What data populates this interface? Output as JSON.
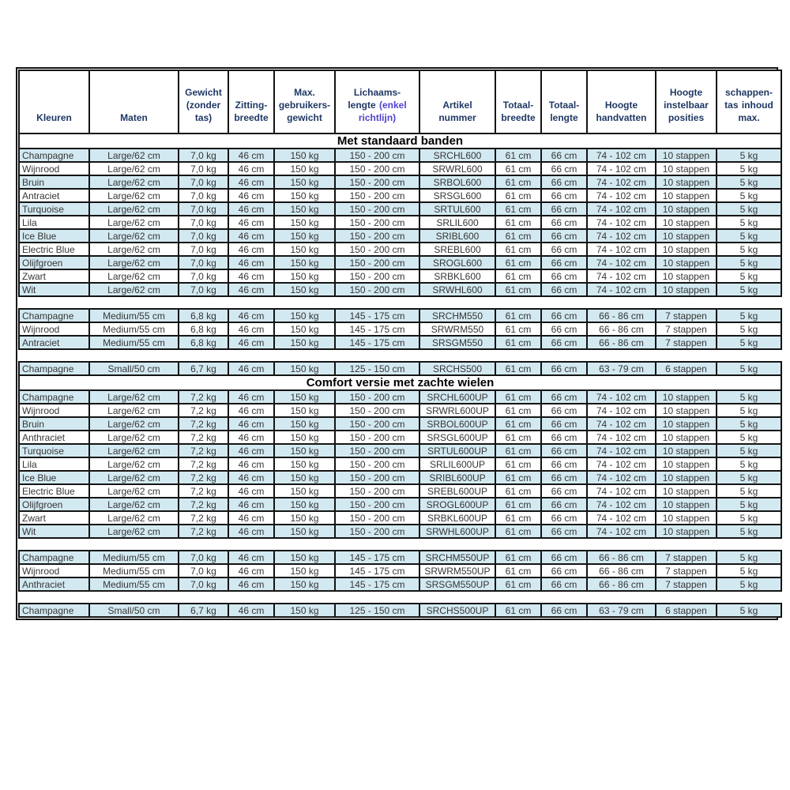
{
  "colors": {
    "stripe_blue": "#d3e9f1",
    "header_text": "#1f3864",
    "note_text": "#4f42cf",
    "body_text": "#363636",
    "grid": "#141414"
  },
  "header": {
    "cells": [
      {
        "lines": [
          "Kleuren"
        ]
      },
      {
        "lines": [
          "Maten"
        ]
      },
      {
        "lines": [
          "Gewicht",
          "(zonder",
          "tas)"
        ]
      },
      {
        "lines": [
          "Zitting-",
          "breedte"
        ]
      },
      {
        "lines": [
          "Max.",
          "gebruikers-",
          "gewicht"
        ]
      },
      {
        "lines": [
          "Lichaams-",
          "lengte"
        ],
        "note": "(enkel richtlijn)"
      },
      {
        "lines": [
          "Artikel",
          "nummer"
        ]
      },
      {
        "lines": [
          "Totaal-",
          "breedte"
        ]
      },
      {
        "lines": [
          "Totaal-",
          "lengte"
        ]
      },
      {
        "lines": [
          "Hoogte",
          "handvatten"
        ]
      },
      {
        "lines": [
          "Hoogte",
          "instelbaar",
          "posities"
        ]
      },
      {
        "lines": [
          "schappen-",
          "tas inhoud",
          "max."
        ]
      }
    ]
  },
  "sections": [
    {
      "title": "Met standaard banden",
      "groups": [
        {
          "rows": [
            [
              "Champagne",
              "Large/62 cm",
              "7,0 kg",
              "46 cm",
              "150 kg",
              "150 - 200 cm",
              "SRCHL600",
              "61 cm",
              "66 cm",
              "74 - 102 cm",
              "10 stappen",
              "5 kg"
            ],
            [
              "Wijnrood",
              "Large/62 cm",
              "7,0 kg",
              "46 cm",
              "150 kg",
              "150 - 200 cm",
              "SRWRL600",
              "61 cm",
              "66 cm",
              "74 - 102 cm",
              "10 stappen",
              "5 kg"
            ],
            [
              "Bruin",
              "Large/62 cm",
              "7,0 kg",
              "46 cm",
              "150 kg",
              "150 - 200 cm",
              "SRBOL600",
              "61 cm",
              "66 cm",
              "74 - 102 cm",
              "10 stappen",
              "5 kg"
            ],
            [
              "Antraciet",
              "Large/62 cm",
              "7,0 kg",
              "46 cm",
              "150 kg",
              "150 - 200 cm",
              "SRSGL600",
              "61 cm",
              "66 cm",
              "74 - 102 cm",
              "10 stappen",
              "5 kg"
            ],
            [
              "Turquoise",
              "Large/62 cm",
              "7,0 kg",
              "46 cm",
              "150 kg",
              "150 - 200 cm",
              "SRTUL600",
              "61 cm",
              "66 cm",
              "74 - 102 cm",
              "10 stappen",
              "5 kg"
            ],
            [
              "Lila",
              "Large/62 cm",
              "7,0 kg",
              "46 cm",
              "150 kg",
              "150 - 200 cm",
              "SRLIL600",
              "61 cm",
              "66 cm",
              "74 - 102 cm",
              "10 stappen",
              "5 kg"
            ],
            [
              "Ice Blue",
              "Large/62 cm",
              "7,0 kg",
              "46 cm",
              "150 kg",
              "150 - 200 cm",
              "SRIBL600",
              "61 cm",
              "66 cm",
              "74 - 102 cm",
              "10 stappen",
              "5 kg"
            ],
            [
              "Electric Blue",
              "Large/62 cm",
              "7,0 kg",
              "46 cm",
              "150 kg",
              "150 - 200 cm",
              "SREBL600",
              "61 cm",
              "66 cm",
              "74 - 102 cm",
              "10 stappen",
              "5 kg"
            ],
            [
              "Olijfgroen",
              "Large/62 cm",
              "7,0 kg",
              "46 cm",
              "150 kg",
              "150 - 200 cm",
              "SROGL600",
              "61 cm",
              "66 cm",
              "74 - 102 cm",
              "10 stappen",
              "5 kg"
            ],
            [
              "Zwart",
              "Large/62 cm",
              "7,0 kg",
              "46 cm",
              "150 kg",
              "150 - 200 cm",
              "SRBKL600",
              "61 cm",
              "66 cm",
              "74 - 102 cm",
              "10 stappen",
              "5 kg"
            ],
            [
              "Wit",
              "Large/62 cm",
              "7,0 kg",
              "46 cm",
              "150 kg",
              "150 - 200 cm",
              "SRWHL600",
              "61 cm",
              "66 cm",
              "74 - 102 cm",
              "10 stappen",
              "5 kg"
            ]
          ]
        },
        {
          "rows": [
            [
              "Champagne",
              "Medium/55 cm",
              "6,8 kg",
              "46 cm",
              "150 kg",
              "145 - 175 cm",
              "SRCHM550",
              "61 cm",
              "66 cm",
              "66 - 86 cm",
              "7 stappen",
              "5 kg"
            ],
            [
              "Wijnrood",
              "Medium/55 cm",
              "6,8 kg",
              "46 cm",
              "150 kg",
              "145 - 175 cm",
              "SRWRM550",
              "61 cm",
              "66 cm",
              "66 - 86 cm",
              "7 stappen",
              "5 kg"
            ],
            [
              "Antraciet",
              "Medium/55 cm",
              "6,8 kg",
              "46 cm",
              "150 kg",
              "145 - 175 cm",
              "SRSGM550",
              "61 cm",
              "66 cm",
              "66 - 86 cm",
              "7 stappen",
              "5 kg"
            ]
          ]
        },
        {
          "rows": [
            [
              "Champagne",
              "Small/50 cm",
              "6,7 kg",
              "46 cm",
              "150 kg",
              "125 - 150 cm",
              "SRCHS500",
              "61 cm",
              "66 cm",
              "63 - 79 cm",
              "6 stappen",
              "5 kg"
            ]
          ]
        }
      ]
    },
    {
      "title": "Comfort versie met zachte wielen",
      "groups": [
        {
          "rows": [
            [
              "Champagne",
              "Large/62 cm",
              "7,2 kg",
              "46 cm",
              "150 kg",
              "150 - 200 cm",
              "SRCHL600UP",
              "61 cm",
              "66 cm",
              "74 - 102 cm",
              "10 stappen",
              "5 kg"
            ],
            [
              "Wijnrood",
              "Large/62 cm",
              "7,2 kg",
              "46 cm",
              "150 kg",
              "150 - 200 cm",
              "SRWRL600UP",
              "61 cm",
              "66 cm",
              "74 - 102 cm",
              "10 stappen",
              "5 kg"
            ],
            [
              "Bruin",
              "Large/62 cm",
              "7,2 kg",
              "46 cm",
              "150 kg",
              "150 - 200 cm",
              "SRBOL600UP",
              "61 cm",
              "66 cm",
              "74 - 102 cm",
              "10 stappen",
              "5 kg"
            ],
            [
              "Anthraciet",
              "Large/62 cm",
              "7,2 kg",
              "46 cm",
              "150 kg",
              "150 - 200 cm",
              "SRSGL600UP",
              "61 cm",
              "66 cm",
              "74 - 102 cm",
              "10 stappen",
              "5 kg"
            ],
            [
              "Turquoise",
              "Large/62 cm",
              "7,2 kg",
              "46 cm",
              "150 kg",
              "150 - 200 cm",
              "SRTUL600UP",
              "61 cm",
              "66 cm",
              "74 - 102 cm",
              "10 stappen",
              "5 kg"
            ],
            [
              "Lila",
              "Large/62 cm",
              "7,2 kg",
              "46 cm",
              "150 kg",
              "150 - 200 cm",
              "SRLIL600UP",
              "61 cm",
              "66 cm",
              "74 - 102 cm",
              "10 stappen",
              "5 kg"
            ],
            [
              "Ice Blue",
              "Large/62 cm",
              "7,2 kg",
              "46 cm",
              "150 kg",
              "150 - 200 cm",
              "SRIBL600UP",
              "61 cm",
              "66 cm",
              "74 - 102 cm",
              "10 stappen",
              "5 kg"
            ],
            [
              "Electric Blue",
              "Large/62 cm",
              "7,2 kg",
              "46 cm",
              "150 kg",
              "150 - 200 cm",
              "SREBL600UP",
              "61 cm",
              "66 cm",
              "74 - 102 cm",
              "10 stappen",
              "5 kg"
            ],
            [
              "Olijfgroen",
              "Large/62 cm",
              "7,2 kg",
              "46 cm",
              "150 kg",
              "150 - 200 cm",
              "SROGL600UP",
              "61 cm",
              "66 cm",
              "74 - 102 cm",
              "10 stappen",
              "5 kg"
            ],
            [
              "Zwart",
              "Large/62 cm",
              "7,2 kg",
              "46 cm",
              "150 kg",
              "150 - 200 cm",
              "SRBKL600UP",
              "61 cm",
              "66 cm",
              "74 - 102 cm",
              "10 stappen",
              "5 kg"
            ],
            [
              "Wit",
              "Large/62 cm",
              "7,2 kg",
              "46 cm",
              "150 kg",
              "150 - 200 cm",
              "SRWHL600UP",
              "61 cm",
              "66 cm",
              "74 - 102 cm",
              "10 stappen",
              "5 kg"
            ]
          ]
        },
        {
          "rows": [
            [
              "Champagne",
              "Medium/55 cm",
              "7,0 kg",
              "46 cm",
              "150 kg",
              "145 - 175 cm",
              "SRCHM550UP",
              "61 cm",
              "66 cm",
              "66 - 86 cm",
              "7 stappen",
              "5 kg"
            ],
            [
              "Wijnrood",
              "Medium/55 cm",
              "7,0 kg",
              "46 cm",
              "150 kg",
              "145 - 175 cm",
              "SRWRM550UP",
              "61 cm",
              "66 cm",
              "66 - 86 cm",
              "7 stappen",
              "5 kg"
            ],
            [
              "Anthraciet",
              "Medium/55 cm",
              "7,0 kg",
              "46 cm",
              "150 kg",
              "145 - 175 cm",
              "SRSGM550UP",
              "61 cm",
              "66 cm",
              "66 - 86 cm",
              "7 stappen",
              "5 kg"
            ]
          ]
        },
        {
          "rows": [
            [
              "Champagne",
              "Small/50 cm",
              "6,7 kg",
              "46 cm",
              "150 kg",
              "125 - 150 cm",
              "SRCHS500UP",
              "61 cm",
              "66 cm",
              "63 - 79 cm",
              "6 stappen",
              "5 kg"
            ]
          ]
        }
      ]
    }
  ]
}
